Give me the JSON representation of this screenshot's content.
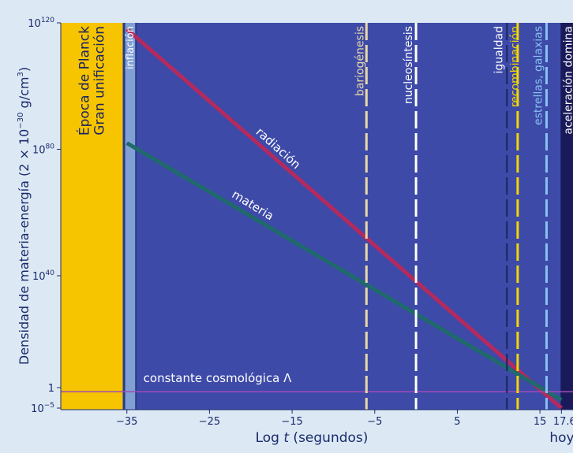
{
  "chart_data": {
    "type": "line",
    "xlabel": {
      "prefix": "Log ",
      "var": "t",
      "suffix": " (segundos)"
    },
    "ylabel": "Densidad de materia-energía (2 × 10",
    "ylabel_exp": "−30",
    "ylabel_unit": " g/cm",
    "ylabel_unit_exp": "3",
    "ylabel_close": ")",
    "xlim": [
      -43,
      19
    ],
    "x_ticks": [
      {
        "x": -35,
        "label": "−35"
      },
      {
        "x": -25,
        "label": "−25"
      },
      {
        "x": -15,
        "label": "−15"
      },
      {
        "x": -5,
        "label": "−5"
      },
      {
        "x": 5,
        "label": "5"
      },
      {
        "x": 15,
        "label": "15"
      },
      {
        "x": 17.6,
        "label": "17.6"
      }
    ],
    "x_note": "hoy",
    "y_ticks": [
      {
        "label": "10",
        "exp": "120"
      },
      {
        "label": "10",
        "exp": "80"
      },
      {
        "label": "10",
        "exp": "40"
      },
      {
        "label": "1",
        "exp": ""
      },
      {
        "label": "10",
        "exp": "−5"
      }
    ],
    "series": [
      {
        "name": "radiación",
        "color": "#b42a5e",
        "x": [
          -35,
          17.6
        ],
        "y_log": [
          118,
          -5
        ]
      },
      {
        "name": "materia",
        "color": "#1f6a6a",
        "x": [
          -35,
          17.6
        ],
        "y_log": [
          82,
          -3
        ]
      },
      {
        "name": "constante cosmológica Λ",
        "color": "#a14ab8",
        "x": [
          -43,
          19
        ],
        "y_log": [
          -1,
          -1
        ]
      }
    ],
    "epochs": [
      {
        "label": "Época de Planck",
        "x_start": -43,
        "x_end": -35.5,
        "color": "#f7c400"
      },
      {
        "label": "Gran unificación",
        "x_start": -43,
        "x_end": -35.5,
        "color": "#f7c400"
      },
      {
        "label": "inflación",
        "x": -34.6,
        "color": "#8fb3e0"
      },
      {
        "label": "bariogénesis",
        "x": -6,
        "color": "#e8d8a8"
      },
      {
        "label": "nucleosíntesis",
        "x": 0,
        "color": "#ffffff"
      },
      {
        "label": "igualdad",
        "x": 11,
        "color": "#1a2560"
      },
      {
        "label": "recombinación",
        "x": 12.3,
        "color": "#f2d600"
      },
      {
        "label": "estrellas, galaxias",
        "x": 15.8,
        "color": "#88c0f0"
      },
      {
        "label": "aceleración domina",
        "x": 17.5,
        "color": "#1a1a5a"
      }
    ],
    "colors": {
      "plot_background": "#3d4aa8",
      "frame": "#dce9f5",
      "text": "#1a2a6a"
    }
  }
}
